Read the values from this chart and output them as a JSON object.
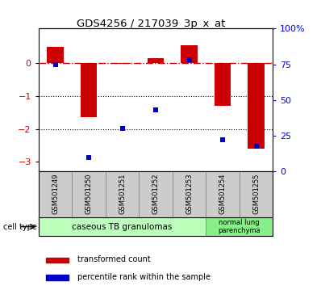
{
  "title": "GDS4256 / 217039_3p_x_at",
  "samples": [
    "GSM501249",
    "GSM501250",
    "GSM501251",
    "GSM501252",
    "GSM501253",
    "GSM501254",
    "GSM501255"
  ],
  "transformed_count": [
    0.5,
    -1.65,
    -0.02,
    0.15,
    0.55,
    -1.3,
    -2.6
  ],
  "percentile_rank": [
    75,
    10,
    30,
    43,
    78,
    22,
    18
  ],
  "ylim_left": [
    -3.3,
    1.05
  ],
  "ylim_right": [
    0,
    100
  ],
  "left_yticks": [
    0,
    -1,
    -2,
    -3
  ],
  "right_yticks": [
    0,
    25,
    50,
    75,
    100
  ],
  "right_yticklabels": [
    "0",
    "25",
    "50",
    "75",
    "100%"
  ],
  "hline_y": 0,
  "dotted_lines": [
    -1,
    -2
  ],
  "bar_color": "#cc0000",
  "scatter_color": "#0000cc",
  "bar_width": 0.5,
  "group1_label": "caseous TB granulomas",
  "group2_label": "normal lung\nparenchyma",
  "group1_indices": [
    0,
    1,
    2,
    3,
    4
  ],
  "group2_indices": [
    5,
    6
  ],
  "cell_type_label": "cell type",
  "legend1": "transformed count",
  "legend2": "percentile rank within the sample",
  "group1_color": "#bbffbb",
  "group2_color": "#88ee88",
  "sample_bg_color": "#cccccc"
}
